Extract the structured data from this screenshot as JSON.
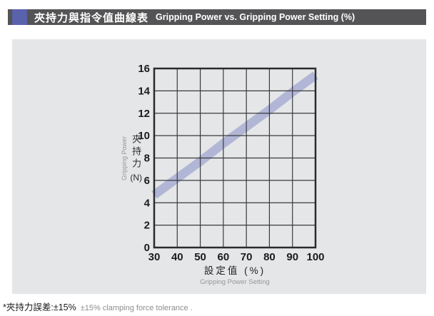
{
  "header": {
    "title_zh": "夾持力與指令值曲線表",
    "title_en": "Gripping Power vs. Gripping Power Setting (%)",
    "bar_color": "#545456",
    "accent_color": "#5a62ac"
  },
  "chart_data": {
    "type": "line",
    "style_note": "single thick lavender band, linear, drawn beneath dark gridlines",
    "x_label_zh": "設定值 (%)",
    "x_label_en": "Gripping Power Setting",
    "y_label_zh": "夾持力",
    "y_unit": "(N)",
    "y_label_en": "Gripping Power",
    "xlim": [
      30,
      100
    ],
    "ylim": [
      0,
      16
    ],
    "x_ticks": [
      30,
      40,
      50,
      60,
      70,
      80,
      90,
      100
    ],
    "y_ticks": [
      0,
      2,
      4,
      6,
      8,
      10,
      12,
      14,
      16
    ],
    "grid": true,
    "legend": "none",
    "series": [
      {
        "name": "gripping-power-band",
        "x": [
          30,
          40,
          50,
          60,
          70,
          80,
          90,
          100
        ],
        "y": [
          4.7,
          6.2,
          7.7,
          9.3,
          10.8,
          12.3,
          13.9,
          15.4
        ],
        "band_stroke_px": 12.5,
        "color": "#b2b6d6"
      }
    ],
    "grid_color": "#3a3a3c",
    "border_color": "#2b2b2d",
    "panel_color": "#e5e6e8"
  },
  "footnote": {
    "zh": "*夾持力誤差:±15%",
    "en": "±15% clamping force tolerance ."
  }
}
